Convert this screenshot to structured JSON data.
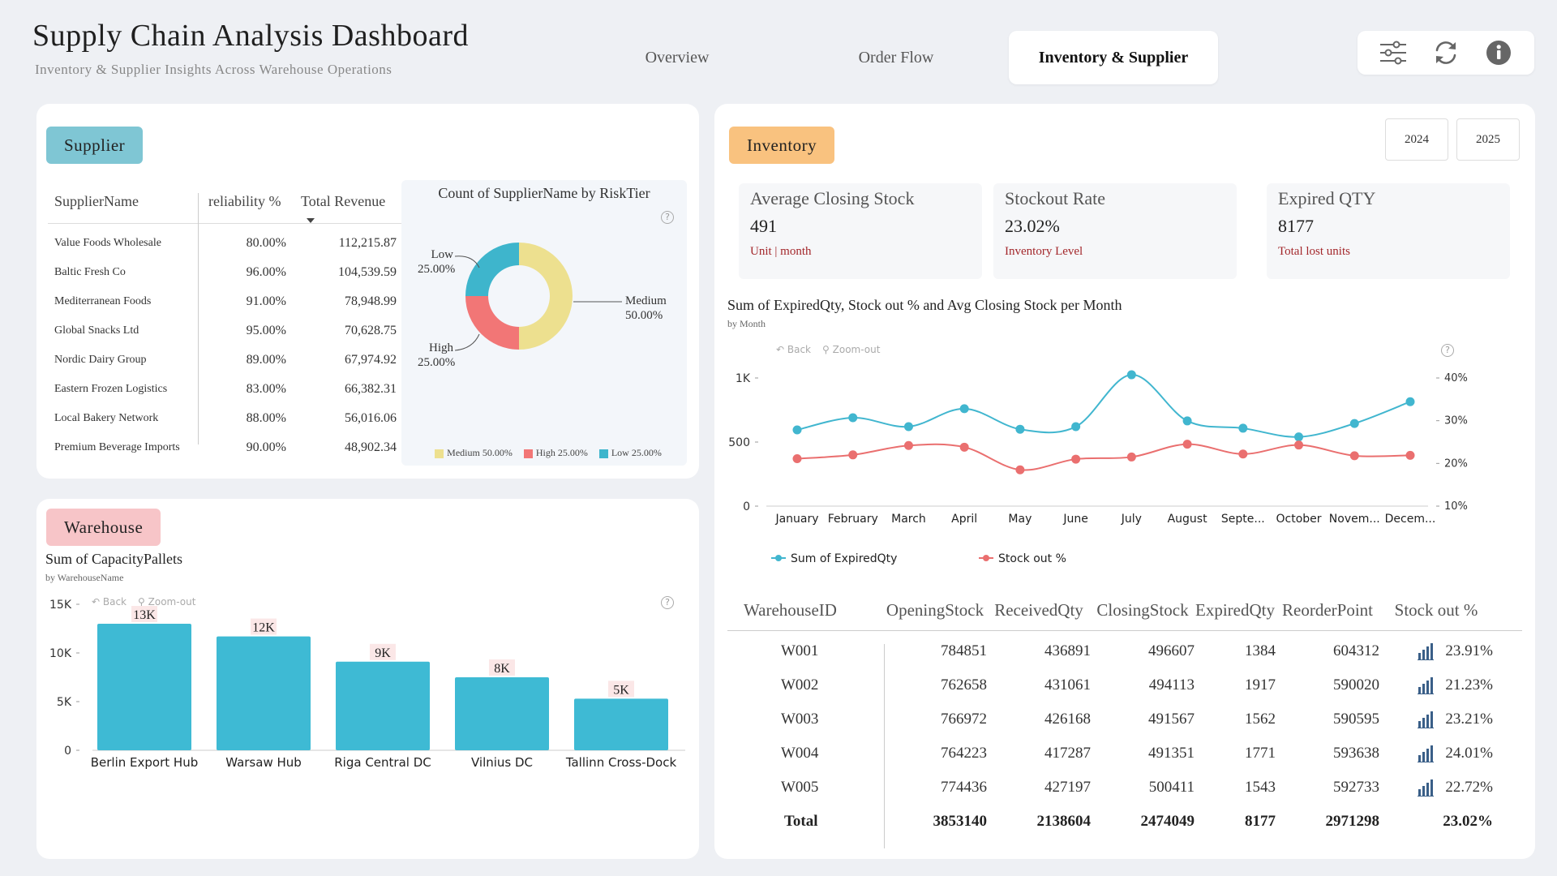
{
  "header": {
    "title": "Supply Chain Analysis Dashboard",
    "subtitle": "Inventory & Supplier Insights Across Warehouse Operations",
    "tabs": [
      {
        "label": "Overview"
      },
      {
        "label": "Order Flow"
      },
      {
        "label": "Inventory & Supplier"
      }
    ],
    "toolbar": [
      "sliders-icon",
      "refresh-icon",
      "info-icon"
    ]
  },
  "supplier": {
    "pill": "Supplier",
    "pill_color": "#7fc6d4",
    "columns": [
      "SupplierName",
      "reliability %",
      "Total Revenue"
    ],
    "rows": [
      {
        "name": "Value Foods Wholesale",
        "reliability": "80.00%",
        "revenue": "112,215.87"
      },
      {
        "name": "Baltic Fresh Co",
        "reliability": "96.00%",
        "revenue": "104,539.59"
      },
      {
        "name": "Mediterranean Foods",
        "reliability": "91.00%",
        "revenue": "78,948.99"
      },
      {
        "name": "Global Snacks Ltd",
        "reliability": "95.00%",
        "revenue": "70,628.75"
      },
      {
        "name": "Nordic Dairy Group",
        "reliability": "89.00%",
        "revenue": "67,974.92"
      },
      {
        "name": "Eastern Frozen Logistics",
        "reliability": "83.00%",
        "revenue": "66,382.31"
      },
      {
        "name": "Local Bakery Network",
        "reliability": "88.00%",
        "revenue": "56,016.06"
      },
      {
        "name": "Premium Beverage Imports",
        "reliability": "90.00%",
        "revenue": "48,902.34"
      }
    ]
  },
  "warehouse": {
    "pill": "Warehouse",
    "pill_color": "#f7c5c8"
  },
  "inventory": {
    "pill": "Inventory",
    "pill_color": "#f9c27f",
    "years": [
      "2024",
      "2025"
    ],
    "kpis": [
      {
        "title": "Average Closing Stock",
        "value": "491",
        "sub": "Unit | month"
      },
      {
        "title": "Stockout Rate",
        "value": "23.02%",
        "sub": "Inventory Level"
      },
      {
        "title": "Expired QTY",
        "value": "8177",
        "sub": "Total lost units"
      }
    ],
    "table": {
      "columns": [
        "WarehouseID",
        "OpeningStock",
        "ReceivedQty",
        "ClosingStock",
        "ExpiredQty",
        "ReorderPoint",
        "Stock out %"
      ],
      "rows": [
        {
          "id": "W001",
          "opening": "784851",
          "received": "436891",
          "closing": "496607",
          "expired": "1384",
          "reorder": "604312",
          "stockout": "23.91%"
        },
        {
          "id": "W002",
          "opening": "762658",
          "received": "431061",
          "closing": "494113",
          "expired": "1917",
          "reorder": "590020",
          "stockout": "21.23%"
        },
        {
          "id": "W003",
          "opening": "766972",
          "received": "426168",
          "closing": "491567",
          "expired": "1562",
          "reorder": "590595",
          "stockout": "23.21%"
        },
        {
          "id": "W004",
          "opening": "764223",
          "received": "417287",
          "closing": "491351",
          "expired": "1771",
          "reorder": "593638",
          "stockout": "24.01%"
        },
        {
          "id": "W005",
          "opening": "774436",
          "received": "427197",
          "closing": "500411",
          "expired": "1543",
          "reorder": "592733",
          "stockout": "22.72%"
        }
      ],
      "total": {
        "id": "Total",
        "opening": "3853140",
        "received": "2138604",
        "closing": "2474049",
        "expired": "8177",
        "reorder": "2971298",
        "stockout": "23.02%"
      }
    }
  },
  "chart_controls": {
    "back": "Back",
    "zoom": "Zoom-out",
    "help": "?"
  },
  "chart_data": [
    {
      "type": "pie",
      "title": "Count of SupplierName by RiskTier",
      "slices": [
        {
          "name": "Medium",
          "value": 50.0,
          "label": "50.00%",
          "color": "#ede08f"
        },
        {
          "name": "High",
          "value": 25.0,
          "label": "25.00%",
          "color": "#f27676"
        },
        {
          "name": "Low",
          "value": 25.0,
          "label": "25.00%",
          "color": "#3eb5cc"
        }
      ],
      "legend": [
        "Medium 50.00%",
        "High 25.00%",
        "Low 25.00%"
      ]
    },
    {
      "type": "bar",
      "title": "Sum of CapacityPallets",
      "subtitle": "by WarehouseName",
      "categories": [
        "Berlin Export Hub",
        "Warsaw Hub",
        "Riga Central DC",
        "Vilnius DC",
        "Tallinn Cross-Dock"
      ],
      "values": [
        13000,
        11700,
        9100,
        7500,
        5300
      ],
      "data_labels": [
        "13K",
        "12K",
        "9K",
        "8K",
        "5K"
      ],
      "yticks": [
        "0",
        "5K",
        "10K",
        "15K"
      ],
      "ylim": [
        0,
        15000
      ],
      "color": "#3ebad4"
    },
    {
      "type": "line",
      "title": "Sum of ExpiredQty, Stock out % and Avg Closing Stock per Month",
      "subtitle": "by Month",
      "categories": [
        "January",
        "February",
        "March",
        "April",
        "May",
        "June",
        "July",
        "August",
        "Septe...",
        "October",
        "Novem...",
        "Decem..."
      ],
      "series": [
        {
          "name": "Sum of ExpiredQty",
          "axis": "left",
          "color": "#41b6cf",
          "values": [
            595,
            690,
            620,
            760,
            600,
            620,
            1025,
            665,
            608,
            540,
            645,
            815
          ]
        },
        {
          "name": "Stock out %",
          "axis": "right",
          "color": "#ea6f6f",
          "values": [
            21.1,
            22.0,
            24.2,
            23.8,
            18.5,
            21.0,
            21.5,
            24.5,
            22.2,
            24.3,
            21.8,
            21.9
          ]
        }
      ],
      "yticks_left": [
        "0",
        "500",
        "1K"
      ],
      "ylim_left": [
        0,
        1000
      ],
      "yticks_right": [
        "10%",
        "20%",
        "30%",
        "40%"
      ],
      "ylim_right": [
        10,
        40
      ]
    }
  ]
}
